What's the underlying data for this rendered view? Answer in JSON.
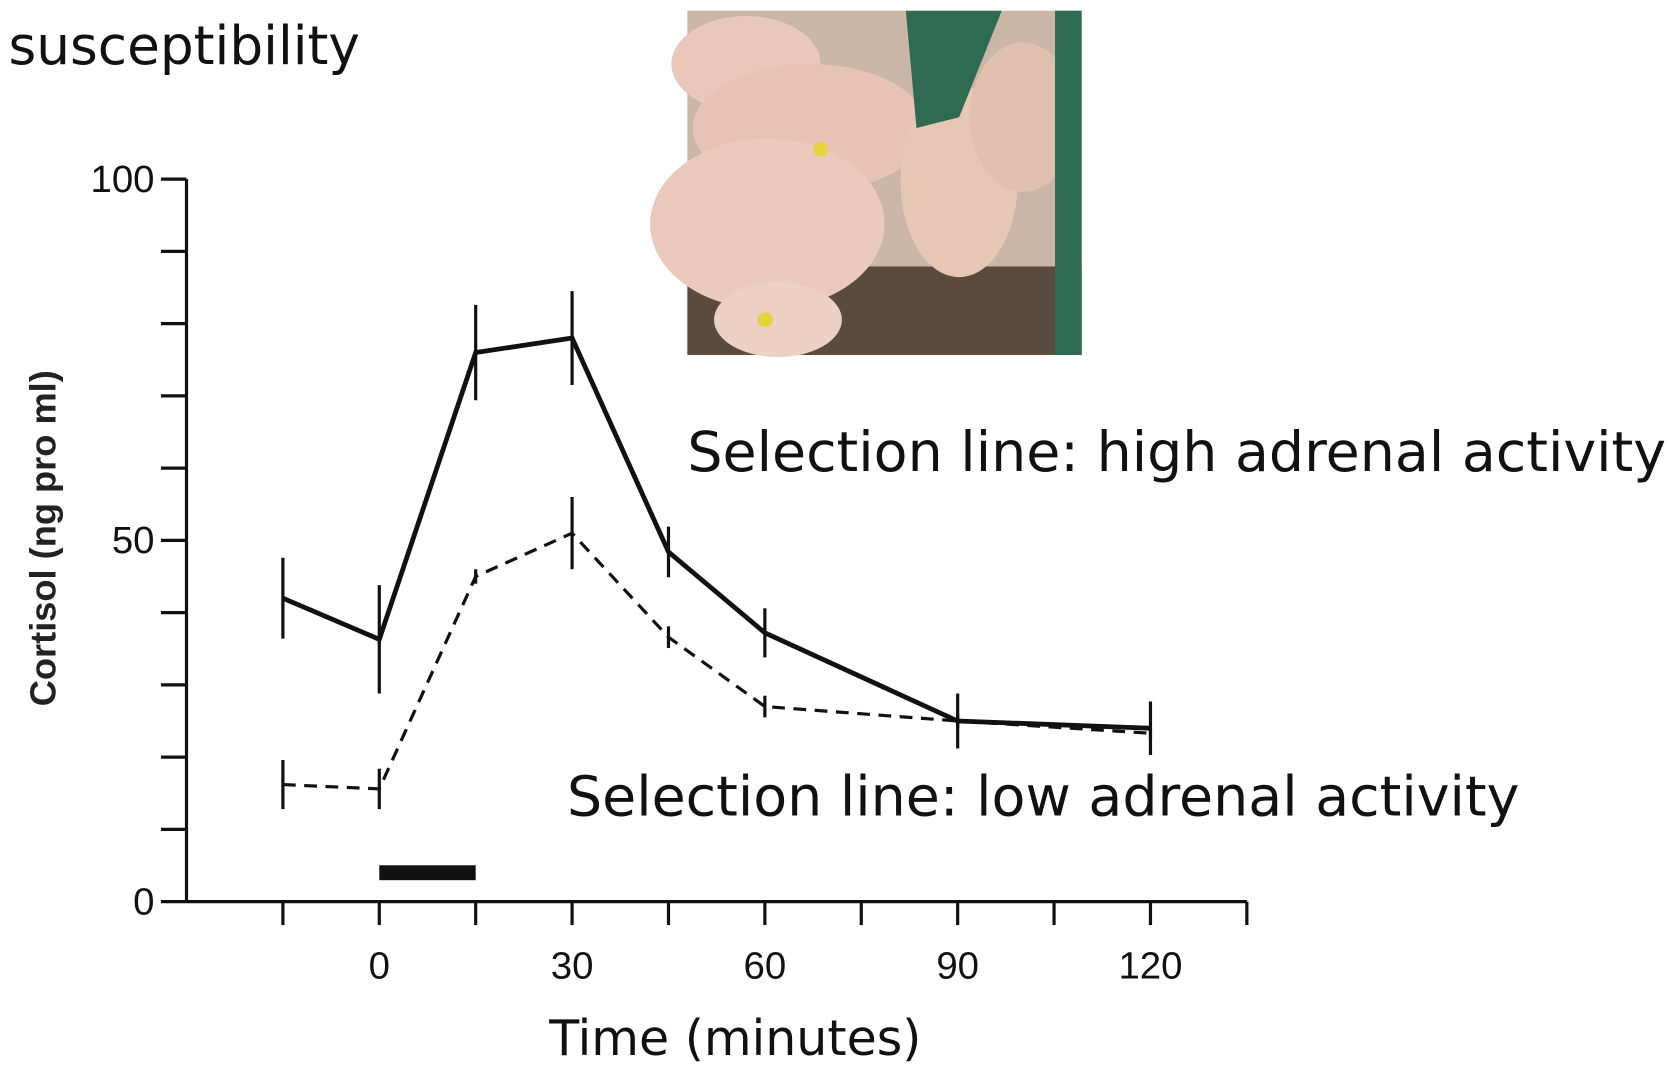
{
  "chart_data": {
    "type": "line",
    "title": "susceptibility",
    "y_label": "Cortisol  (ng  pro  ml)",
    "x_label": "Time (minutes)",
    "x": [
      -15,
      0,
      15,
      30,
      45,
      60,
      90,
      120
    ],
    "series": [
      {
        "name": "Selection line: high adrenal activity",
        "color": "#111111",
        "dashed": false,
        "values": [
          42,
          36.3,
          76,
          78,
          48.4,
          37.2,
          25,
          24
        ],
        "errors": [
          5.6,
          7.5,
          6.6,
          6.5,
          3.5,
          3.4,
          3.8,
          3.7
        ]
      },
      {
        "name": "Selection line: low adrenal activity",
        "color": "#111111",
        "dashed": true,
        "values": [
          16.2,
          15.6,
          45,
          51,
          36.6,
          27,
          25,
          23.3
        ],
        "errors": [
          3.4,
          2.8,
          1,
          5,
          1.5,
          1.5,
          1,
          1
        ]
      }
    ],
    "stimulus": {
      "start": 0,
      "end": 15,
      "y": 4
    },
    "xlim": [
      -30,
      135
    ],
    "xticks": [
      0,
      30,
      60,
      90,
      120
    ],
    "xminor_ticks": [
      -15,
      15,
      45,
      75,
      105,
      135
    ],
    "ylim": [
      0,
      100
    ],
    "yticks": [
      0,
      50,
      100
    ],
    "yminor_ticks": [
      10,
      20,
      30,
      40,
      60,
      70,
      80,
      90
    ]
  }
}
